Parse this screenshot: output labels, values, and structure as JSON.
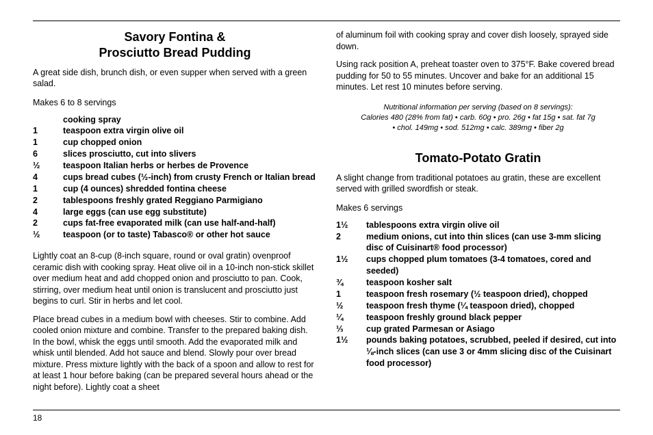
{
  "page_number": "18",
  "left": {
    "title_line1": "Savory Fontina &",
    "title_line2": "Prosciutto Bread Pudding",
    "desc": "A great side dish, brunch dish, or even supper when served with a green salad.",
    "makes": "Makes 6 to 8 servings",
    "ingredients": [
      {
        "qty": "",
        "text": "cooking spray"
      },
      {
        "qty": "1",
        "text": "teaspoon extra virgin olive oil"
      },
      {
        "qty": "1",
        "text": "cup chopped onion"
      },
      {
        "qty": "6",
        "text": "slices prosciutto, cut into slivers"
      },
      {
        "qty": "½",
        "text": "teaspoon Italian herbs or herbes de Provence"
      },
      {
        "qty": "4",
        "text": "cups bread cubes (½-inch) from crusty French or Italian bread"
      },
      {
        "qty": "1",
        "text": "cup (4 ounces) shredded fontina cheese"
      },
      {
        "qty": "2",
        "text": "tablespoons freshly grated Reggiano Parmigiano"
      },
      {
        "qty": "4",
        "text": "large eggs (can use egg substitute)"
      },
      {
        "qty": "2",
        "text": "cups fat-free evaporated milk (can use half-and-half)"
      },
      {
        "qty": "½",
        "text": "teaspoon (or to taste) Tabasco® or other hot sauce"
      }
    ],
    "step1": "Lightly coat an 8-cup (8-inch square, round or oval gratin) ovenproof ceramic dish with cooking spray. Heat olive oil in a 10-inch non-stick skillet over medium heat and add chopped onion and prosciutto to pan. Cook, stirring, over medium heat until onion is translucent and prosciutto just begins to curl. Stir in herbs and let cool.",
    "step2": "Place bread cubes in a medium bowl with cheeses. Stir to combine. Add cooled onion mixture and combine. Transfer to the prepared baking dish. In the bowl, whisk the eggs until smooth. Add the evaporated milk and whisk until blended. Add hot sauce and blend. Slowly pour over bread mixture. Press mixture lightly with the back of a spoon and allow to rest for at least 1 hour before baking (can be prepared several hours ahead or the night before). Lightly coat a sheet"
  },
  "right": {
    "cont1": "of aluminum foil with cooking spray and cover dish loosely, sprayed side down.",
    "cont2": "Using rack position A, preheat toaster oven to 375°F. Bake covered bread pudding for 50 to 55 minutes. Uncover and bake for an additional 15 minutes. Let rest 10 minutes before serving.",
    "nutri1": "Nutritional information per serving (based on 8 servings):",
    "nutri2": "Calories 480 (28% from fat) • carb. 60g • pro. 26g • fat 15g • sat. fat 7g",
    "nutri3": "• chol. 149mg • sod. 512mg • calc. 389mg • fiber 2g",
    "title": "Tomato-Potato Gratin",
    "desc": "A slight change from traditional potatoes au gratin, these are excellent served with grilled swordfish or steak.",
    "makes": "Makes 6 servings",
    "ingredients": [
      {
        "qty": "1½",
        "text": "tablespoons extra virgin olive oil"
      },
      {
        "qty": "2",
        "text": "medium onions, cut into thin slices\n(can use 3-mm slicing disc of Cuisinart® food processor)"
      },
      {
        "qty": "1½",
        "text": "cups chopped plum tomatoes (3-4 tomatoes, cored and seeded)"
      },
      {
        "qty": "¾",
        "text": "teaspoon kosher salt"
      },
      {
        "qty": "1",
        "text": "teaspoon fresh rosemary (½ teaspoon dried), chopped"
      },
      {
        "qty": "½",
        "text": "teaspoon fresh thyme (¼ teaspoon dried), chopped"
      },
      {
        "qty": "¼",
        "text": "teaspoon freshly ground black pepper"
      },
      {
        "qty": "⅓",
        "text": "cup grated Parmesan or Asiago"
      },
      {
        "qty": "1½",
        "text": "pounds baking potatoes, scrubbed, peeled if desired, cut into ⅛-inch slices (can use 3 or 4mm slicing disc of the Cuisinart food processor)"
      }
    ]
  }
}
